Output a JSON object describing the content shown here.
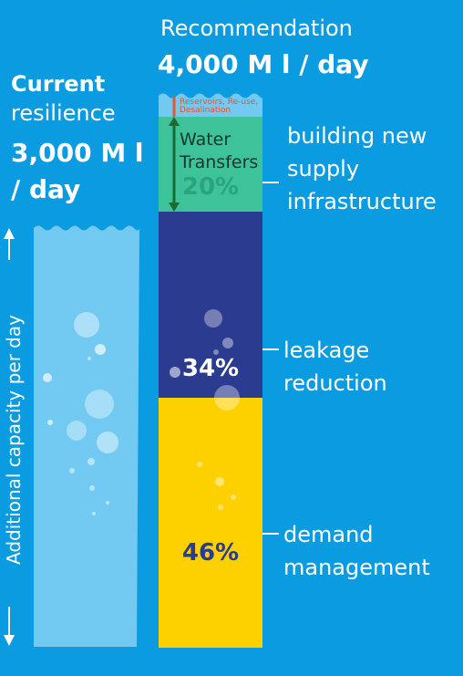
{
  "current": {
    "title_bold": "Current",
    "title_light": "resilience",
    "value": "3,000 M l / day"
  },
  "recommendation": {
    "title": "Recommendation",
    "value": "4,000 M l / day"
  },
  "axis": {
    "ylabel": "Additional capacity per day"
  },
  "colors": {
    "background": "#0a9be0",
    "current_water": "#72c9f2",
    "transfers": "#3ec29a",
    "leakage": "#2b3b8f",
    "demand": "#fdd000",
    "reservoir": "#e2572b",
    "arrow": "#1b6b2e"
  },
  "chart_data": {
    "type": "bar",
    "title": "",
    "ylabel": "Additional capacity per day",
    "bars": [
      {
        "name": "Current resilience",
        "value": 3000,
        "unit": "M l / day"
      },
      {
        "name": "Recommendation",
        "value": 4000,
        "unit": "M l / day",
        "stack": [
          {
            "label": "demand management",
            "percent": 46
          },
          {
            "label": "leakage reduction",
            "percent": 34
          },
          {
            "label": "building new supply infrastructure",
            "percent": 20,
            "sub": [
              {
                "label": "Reservoirs, Re-use, Desalination"
              },
              {
                "label": "Water Transfers"
              }
            ]
          }
        ]
      }
    ],
    "segment_labels": {
      "demand": {
        "percent": "46%",
        "text": "demand\nmanagement"
      },
      "leakage": {
        "percent": "34%",
        "text": "leakage\nreduction"
      },
      "infrastructure": {
        "percent": "20%",
        "text": "building new\nsupply\ninfrastructure"
      },
      "transfers": "Water\nTransfers",
      "reservoirs": "Reservoirs, Re-use,\nDesalination"
    }
  }
}
